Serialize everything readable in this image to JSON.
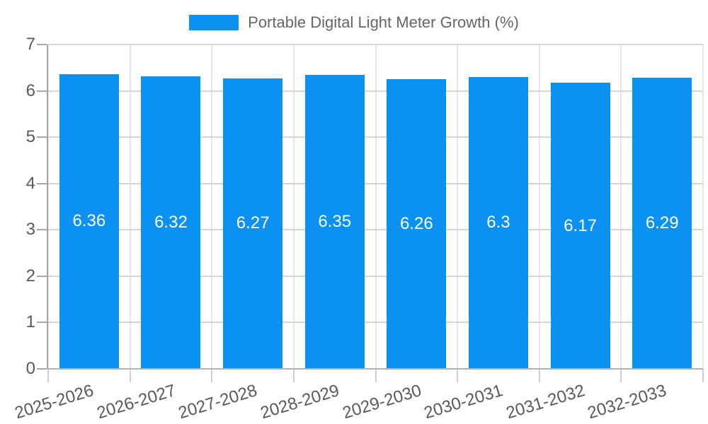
{
  "chart_data": {
    "type": "bar",
    "title": "",
    "legend": "Portable Digital Light Meter Growth (%)",
    "legend_position": "top-center",
    "categories": [
      "2025-2026",
      "2026-2027",
      "2027-2028",
      "2028-2029",
      "2029-2030",
      "2030-2031",
      "2031-2032",
      "2032-2033"
    ],
    "values": [
      6.36,
      6.32,
      6.27,
      6.35,
      6.26,
      6.3,
      6.17,
      6.29
    ],
    "value_labels": [
      "6.36",
      "6.32",
      "6.27",
      "6.35",
      "6.26",
      "6.3",
      "6.17",
      "6.29"
    ],
    "xlabel": "",
    "ylabel": "",
    "ylim": [
      0,
      7
    ],
    "yticks": [
      0,
      1,
      2,
      3,
      4,
      5,
      6,
      7
    ],
    "grid": true,
    "colors": {
      "bar": "#0a91f2",
      "value_label": "#ffffff",
      "axis_text": "#595959",
      "legend_text": "#666666",
      "hgrid": "#d4d4d4",
      "vgrid": "#e6e6e6",
      "axis_line": "#a6a6a6",
      "baseline": "#b3b3b3",
      "background": "#ffffff"
    }
  }
}
